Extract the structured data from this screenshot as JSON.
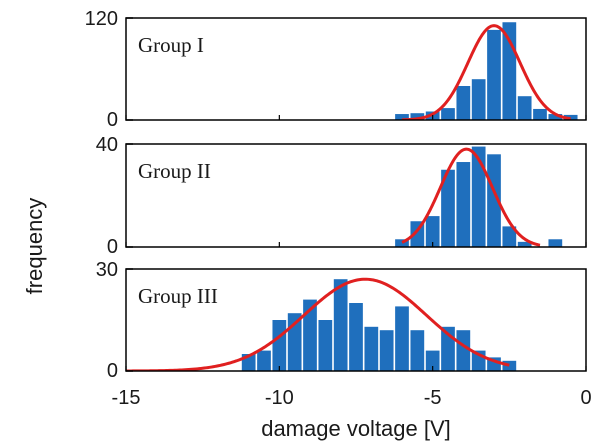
{
  "chart_data": {
    "type": "bar",
    "xlabel": "damage voltage [V]",
    "ylabel": "frequency",
    "xlim": [
      -15,
      0
    ],
    "xticks": [
      -15,
      -10,
      -5,
      0
    ],
    "bin_width": 0.5,
    "colors": {
      "bar": "#1f6fbd",
      "fit": "#e02020"
    },
    "panels": [
      {
        "label": "Group I",
        "ylim": [
          0,
          120
        ],
        "yticks": [
          0,
          120
        ],
        "bars": [
          {
            "x": -6.0,
            "y": 7
          },
          {
            "x": -5.5,
            "y": 8
          },
          {
            "x": -5.0,
            "y": 10
          },
          {
            "x": -4.5,
            "y": 14
          },
          {
            "x": -4.0,
            "y": 40
          },
          {
            "x": -3.5,
            "y": 48
          },
          {
            "x": -3.0,
            "y": 106
          },
          {
            "x": -2.5,
            "y": 115
          },
          {
            "x": -2.0,
            "y": 28
          },
          {
            "x": -1.5,
            "y": 13
          },
          {
            "x": -1.0,
            "y": 7
          },
          {
            "x": -0.5,
            "y": 6
          }
        ],
        "fit": {
          "mu": -3.0,
          "sigma": 0.85,
          "amplitude": 111,
          "from": -6.0,
          "to": -0.5
        }
      },
      {
        "label": "Group II",
        "ylim": [
          0,
          40
        ],
        "yticks": [
          0,
          40
        ],
        "bars": [
          {
            "x": -6.0,
            "y": 3
          },
          {
            "x": -5.5,
            "y": 10
          },
          {
            "x": -5.0,
            "y": 12
          },
          {
            "x": -4.5,
            "y": 30
          },
          {
            "x": -4.0,
            "y": 33
          },
          {
            "x": -3.5,
            "y": 39
          },
          {
            "x": -3.0,
            "y": 36
          },
          {
            "x": -2.5,
            "y": 8
          },
          {
            "x": -2.0,
            "y": 2
          },
          {
            "x": -1.0,
            "y": 3
          }
        ],
        "fit": {
          "mu": -3.9,
          "sigma": 0.85,
          "amplitude": 38,
          "from": -6.0,
          "to": -1.5
        }
      },
      {
        "label": "Group III",
        "ylim": [
          0,
          30
        ],
        "yticks": [
          0,
          30
        ],
        "bars": [
          {
            "x": -11.0,
            "y": 5
          },
          {
            "x": -10.5,
            "y": 6
          },
          {
            "x": -10.0,
            "y": 15
          },
          {
            "x": -9.5,
            "y": 17
          },
          {
            "x": -9.0,
            "y": 21
          },
          {
            "x": -8.5,
            "y": 15
          },
          {
            "x": -8.0,
            "y": 27
          },
          {
            "x": -7.5,
            "y": 20
          },
          {
            "x": -7.0,
            "y": 13
          },
          {
            "x": -6.5,
            "y": 12
          },
          {
            "x": -6.0,
            "y": 19
          },
          {
            "x": -5.5,
            "y": 12
          },
          {
            "x": -5.0,
            "y": 6
          },
          {
            "x": -4.5,
            "y": 13
          },
          {
            "x": -4.0,
            "y": 12
          },
          {
            "x": -3.5,
            "y": 6
          },
          {
            "x": -3.0,
            "y": 4
          },
          {
            "x": -2.5,
            "y": 3
          }
        ],
        "fit": {
          "mu": -7.2,
          "sigma": 2.0,
          "amplitude": 27,
          "from": -15.0,
          "to": -2.5
        }
      }
    ]
  }
}
